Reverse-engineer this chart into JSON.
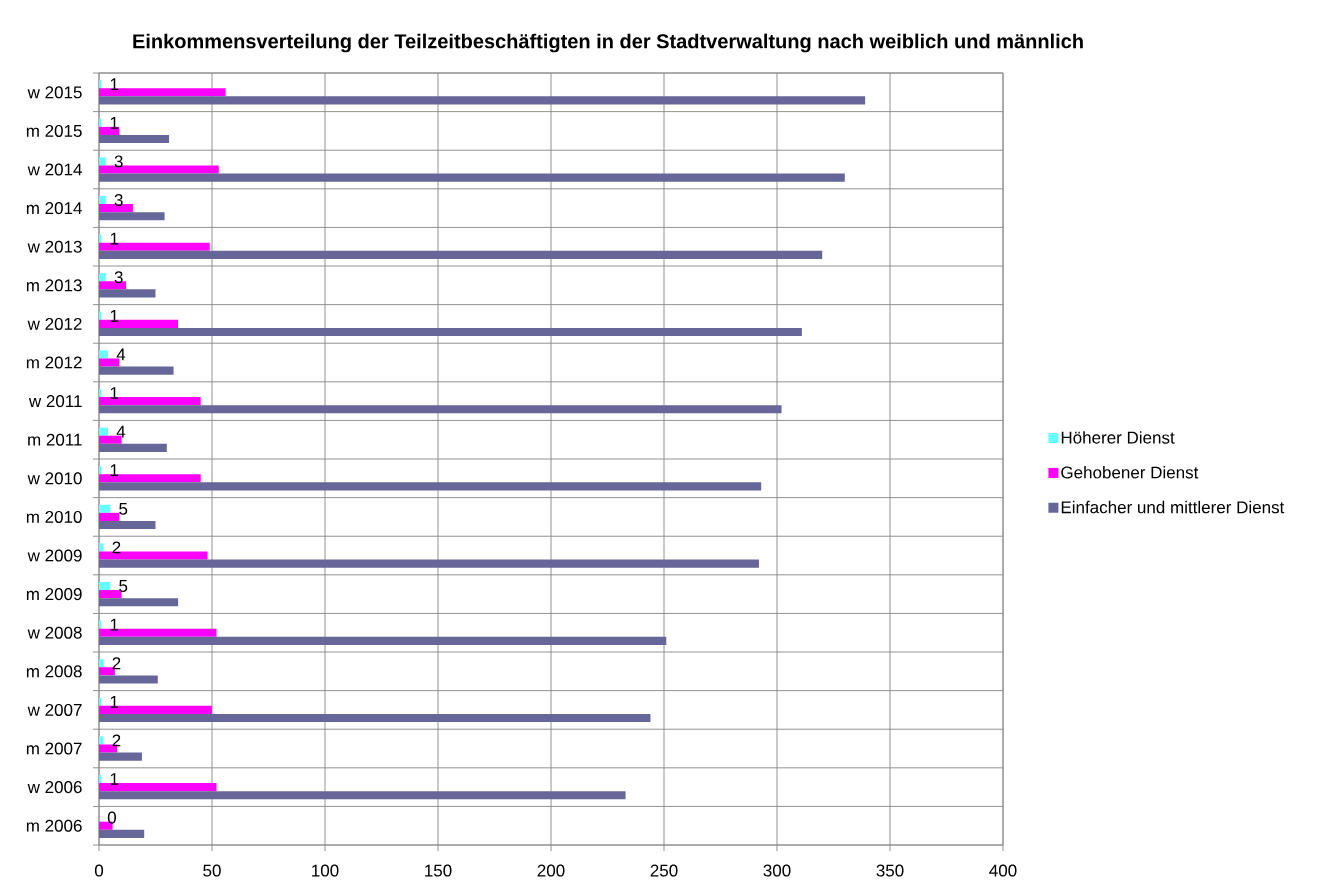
{
  "chart_data": {
    "type": "bar",
    "orientation": "horizontal",
    "title": "Einkommensverteilung der Teilzeitbeschäftigten in der Stadtverwaltung nach weiblich und männlich",
    "categories": [
      "w 2015",
      "m 2015",
      "w 2014",
      "m 2014",
      "w 2013",
      "m 2013",
      "w 2012",
      "m 2012",
      "w 2011",
      "m 2011",
      "w 2010",
      "m 2010",
      "w 2009",
      "m 2009",
      "w 2008",
      "m 2008",
      "w 2007",
      "m 2007",
      "w 2006",
      "m 2006"
    ],
    "series": [
      {
        "name": "Höherer Dienst",
        "color": "#66ffff",
        "values": [
          1,
          1,
          3,
          3,
          1,
          3,
          1,
          4,
          1,
          4,
          1,
          5,
          2,
          5,
          1,
          2,
          1,
          2,
          1,
          0
        ],
        "value_labels": [
          "1",
          "1",
          "3",
          "3",
          "1",
          "3",
          "1",
          "4",
          "1",
          "4",
          "1",
          "5",
          "2",
          "5",
          "1",
          "2",
          "1",
          "2",
          "1",
          "0"
        ]
      },
      {
        "name": "Gehobener Dienst",
        "color": "#ff00ff",
        "values": [
          56,
          9,
          53,
          15,
          49,
          12,
          35,
          9,
          45,
          10,
          45,
          9,
          48,
          10,
          52,
          7,
          50,
          8,
          52,
          6
        ]
      },
      {
        "name": "Einfacher und mittlerer Dienst",
        "color": "#666699",
        "values": [
          339,
          31,
          330,
          29,
          320,
          25,
          311,
          33,
          302,
          30,
          293,
          25,
          292,
          35,
          251,
          26,
          244,
          19,
          233,
          20
        ]
      }
    ],
    "xlim": [
      0,
      400
    ],
    "xticks": [
      0,
      50,
      100,
      150,
      200,
      250,
      300,
      350,
      400
    ],
    "grid": true,
    "legend": "right"
  }
}
